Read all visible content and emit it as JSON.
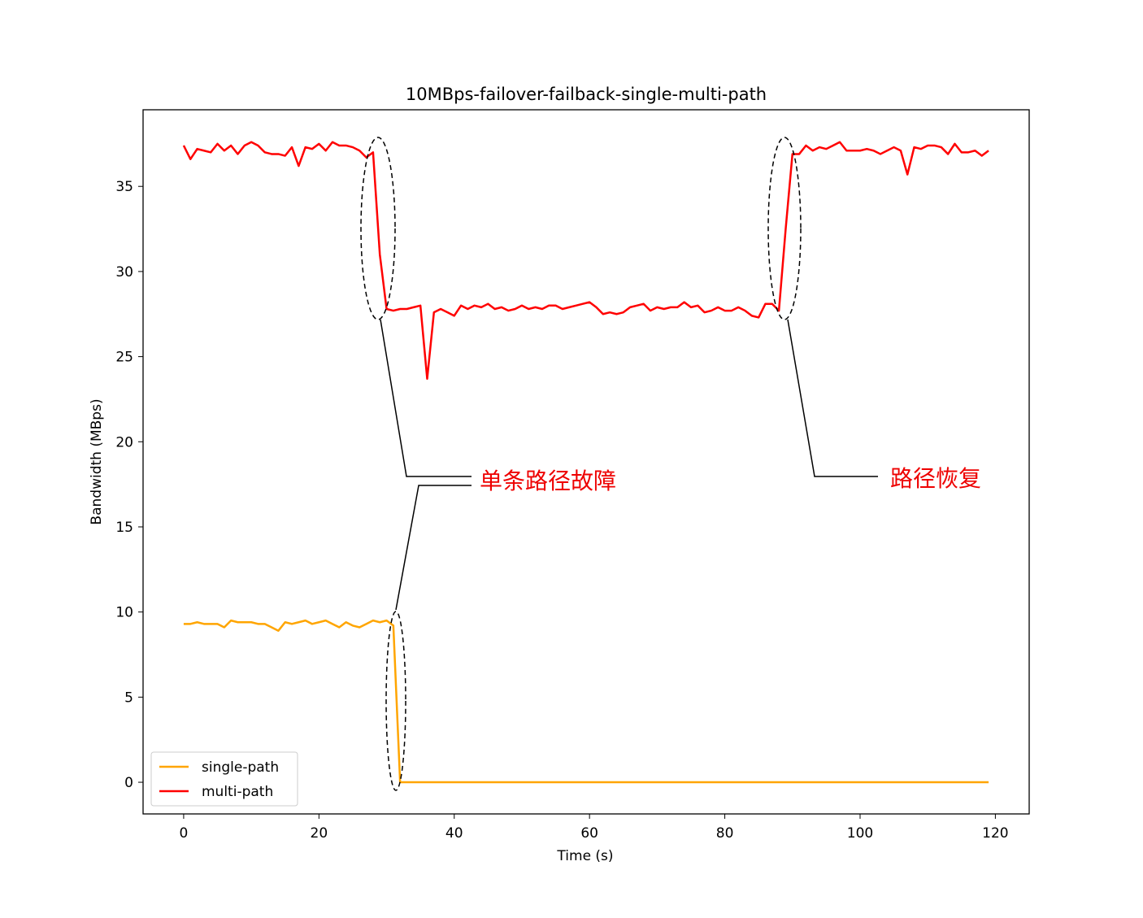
{
  "chart_data": {
    "type": "line",
    "title": "10MBps-failover-failback-single-multi-path",
    "xlabel": "Time (s)",
    "ylabel": "Bandwidth (MBps)",
    "x": [
      0,
      1,
      2,
      3,
      4,
      5,
      6,
      7,
      8,
      9,
      10,
      11,
      12,
      13,
      14,
      15,
      16,
      17,
      18,
      19,
      20,
      21,
      22,
      23,
      24,
      25,
      26,
      27,
      28,
      29,
      30,
      31,
      32,
      33,
      34,
      35,
      36,
      37,
      38,
      39,
      40,
      41,
      42,
      43,
      44,
      45,
      46,
      47,
      48,
      49,
      50,
      51,
      52,
      53,
      54,
      55,
      56,
      57,
      58,
      59,
      60,
      61,
      62,
      63,
      64,
      65,
      66,
      67,
      68,
      69,
      70,
      71,
      72,
      73,
      74,
      75,
      76,
      77,
      78,
      79,
      80,
      81,
      82,
      83,
      84,
      85,
      86,
      87,
      88,
      89,
      90,
      91,
      92,
      93,
      94,
      95,
      96,
      97,
      98,
      99,
      100,
      101,
      102,
      103,
      104,
      105,
      106,
      107,
      108,
      109,
      110,
      111,
      112,
      113,
      114,
      115,
      116,
      117,
      118,
      119
    ],
    "series": [
      {
        "name": "single-path",
        "color": "#ffa500",
        "values": [
          9.3,
          9.3,
          9.4,
          9.3,
          9.3,
          9.3,
          9.1,
          9.5,
          9.4,
          9.4,
          9.4,
          9.3,
          9.3,
          9.1,
          8.9,
          9.4,
          9.3,
          9.4,
          9.5,
          9.3,
          9.4,
          9.5,
          9.3,
          9.1,
          9.4,
          9.2,
          9.1,
          9.3,
          9.5,
          9.4,
          9.5,
          9.2,
          0,
          0,
          0,
          0,
          0,
          0,
          0,
          0,
          0,
          0,
          0,
          0,
          0,
          0,
          0,
          0,
          0,
          0,
          0,
          0,
          0,
          0,
          0,
          0,
          0,
          0,
          0,
          0,
          0,
          0,
          0,
          0,
          0,
          0,
          0,
          0,
          0,
          0,
          0,
          0,
          0,
          0,
          0,
          0,
          0,
          0,
          0,
          0,
          0,
          0,
          0,
          0,
          0,
          0,
          0,
          0,
          0,
          0,
          0,
          0,
          0,
          0,
          0,
          0,
          0,
          0,
          0,
          0,
          0,
          0,
          0,
          0,
          0,
          0,
          0,
          0,
          0,
          0,
          0,
          0,
          0,
          0,
          0,
          0,
          0,
          0,
          0,
          0
        ]
      },
      {
        "name": "multi-path",
        "color": "#ff0000",
        "values": [
          37.4,
          36.6,
          37.2,
          37.1,
          37.0,
          37.5,
          37.1,
          37.4,
          36.9,
          37.4,
          37.6,
          37.4,
          37.0,
          36.9,
          36.9,
          36.8,
          37.3,
          36.2,
          37.3,
          37.2,
          37.5,
          37.1,
          37.6,
          37.4,
          37.4,
          37.3,
          37.1,
          36.7,
          37.0,
          31.0,
          27.8,
          27.7,
          27.8,
          27.8,
          27.9,
          28.0,
          23.7,
          27.6,
          27.8,
          27.6,
          27.4,
          28.0,
          27.8,
          28.0,
          27.9,
          28.1,
          27.8,
          27.9,
          27.7,
          27.8,
          28.0,
          27.8,
          27.9,
          27.8,
          28.0,
          28.0,
          27.8,
          27.9,
          28.0,
          28.1,
          28.2,
          27.9,
          27.5,
          27.6,
          27.5,
          27.6,
          27.9,
          28.0,
          28.1,
          27.7,
          27.9,
          27.8,
          27.9,
          27.9,
          28.2,
          27.9,
          28.0,
          27.6,
          27.7,
          27.9,
          27.7,
          27.7,
          27.9,
          27.7,
          27.4,
          27.3,
          28.1,
          28.1,
          27.7,
          32.5,
          36.9,
          36.9,
          37.4,
          37.1,
          37.3,
          37.2,
          37.4,
          37.6,
          37.1,
          37.1,
          37.1,
          37.2,
          37.1,
          36.9,
          37.1,
          37.3,
          37.1,
          35.7,
          37.3,
          37.2,
          37.4,
          37.4,
          37.3,
          36.9,
          37.5,
          37.0,
          37.0,
          37.1,
          36.8,
          37.1
        ]
      }
    ],
    "xlim": [
      -6,
      125
    ],
    "ylim": [
      -1.86,
      39.5
    ],
    "xticks": [
      0,
      20,
      40,
      60,
      80,
      100,
      120
    ],
    "yticks": [
      0,
      5,
      10,
      15,
      20,
      25,
      30,
      35
    ],
    "legend": "lower left",
    "annotations": [
      "单条路径故障",
      "路径恢复"
    ]
  }
}
